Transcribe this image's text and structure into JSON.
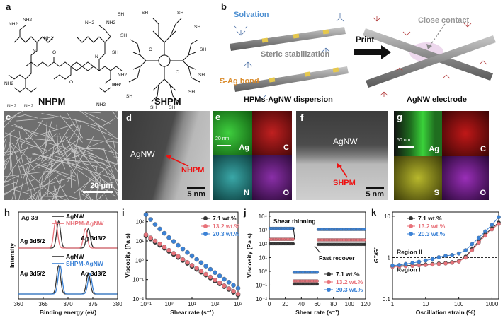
{
  "panels": {
    "a": {
      "label": "a",
      "nhpm": "NHPM",
      "shpm": "SHPM",
      "amine": "NH2",
      "thiol": "SH",
      "amide_o": "O",
      "amide_n": "N"
    },
    "b": {
      "label": "b",
      "solvation": "Solvation",
      "steric": "Steric stabilization",
      "sag": "S-Ag bond",
      "print": "Print",
      "close_contact": "Close contact",
      "left_caption": "HPMs-AgNW dispersion",
      "right_caption": "AgNW electrode"
    },
    "c": {
      "label": "c",
      "scale": "20 μm"
    },
    "d": {
      "label": "d",
      "agnw": "AgNW",
      "nhpm": "NHPM",
      "scale": "5 nm"
    },
    "e": {
      "label": "e",
      "scale": "20 nm",
      "ag": "Ag",
      "c": "C",
      "n": "N",
      "o": "O"
    },
    "f": {
      "label": "f",
      "agnw": "AgNW",
      "shpm": "SHPM",
      "scale": "5 nm"
    },
    "g": {
      "label": "g",
      "scale": "50 nm",
      "ag": "Ag",
      "c": "C",
      "s": "S",
      "o": "O"
    },
    "h": {
      "label": "h"
    },
    "i": {
      "label": "i"
    },
    "j": {
      "label": "j"
    },
    "k": {
      "label": "k"
    }
  },
  "colors": {
    "black": "#333333",
    "red": "#e8727a",
    "blue": "#3b82d6"
  },
  "chart_data": [
    {
      "id": "h",
      "type": "line",
      "xlabel": "Binding energy (eV)",
      "ylabel": "Intensity",
      "xlim": [
        360,
        380
      ],
      "xticks": [
        360,
        365,
        370,
        375,
        380
      ],
      "title_parts": [
        "Ag 3",
        "d"
      ],
      "annotations": {
        "top_left": "Ag 3d5/2",
        "top_right": "Ag 3d3/2",
        "bottom_left": "Ag 3d5/2",
        "bottom_right": "Ag 3d3/2"
      },
      "series": [
        {
          "name": "AgNW",
          "group": "top",
          "color": "#333333",
          "peaks": [
            368.1,
            374.1
          ]
        },
        {
          "name": "NHPM-AgNW",
          "group": "top",
          "color": "#e8727a",
          "peaks": [
            367.5,
            373.5
          ]
        },
        {
          "name": "AgNW",
          "group": "bottom",
          "color": "#333333",
          "peaks": [
            368.1,
            374.1
          ]
        },
        {
          "name": "SHPM-AgNW",
          "group": "bottom",
          "color": "#3b82d6",
          "peaks": [
            368.4,
            374.4
          ]
        }
      ]
    },
    {
      "id": "i",
      "type": "scatter",
      "xlabel": "Shear rate (s⁻¹)",
      "ylabel": "Viscosity (Pa s)",
      "xscale": "log",
      "yscale": "log",
      "xticks": [
        "10⁻¹",
        "10⁰",
        "10¹",
        "10²",
        "10³"
      ],
      "yticks": [
        "10⁻²",
        "10⁻¹",
        "10⁰",
        "10¹",
        "10²"
      ],
      "x": [
        0.1,
        0.16,
        0.25,
        0.4,
        0.63,
        1,
        1.6,
        2.5,
        4,
        6.3,
        10,
        16,
        25,
        40,
        63,
        100,
        160,
        250,
        400,
        630,
        1000
      ],
      "series": [
        {
          "name": "7.1 wt.%",
          "color": "#333333",
          "values": [
            18,
            12.5,
            8.6,
            6.0,
            4.2,
            2.9,
            2.0,
            1.4,
            0.98,
            0.69,
            0.48,
            0.34,
            0.24,
            0.17,
            0.12,
            0.084,
            0.06,
            0.043,
            0.031,
            0.022,
            0.016
          ]
        },
        {
          "name": "13.2 wt.%",
          "color": "#e8727a",
          "values": [
            21,
            14.5,
            10,
            7.0,
            4.8,
            3.3,
            2.3,
            1.6,
            1.1,
            0.78,
            0.55,
            0.39,
            0.27,
            0.19,
            0.135,
            0.095,
            0.068,
            0.048,
            0.034,
            0.025,
            0.018
          ]
        },
        {
          "name": "20.3 wt.%",
          "color": "#3b82d6",
          "values": [
            230,
            130,
            72,
            42,
            25,
            15,
            9.5,
            6.0,
            3.9,
            2.55,
            1.7,
            1.12,
            0.75,
            0.5,
            0.34,
            0.23,
            0.155,
            0.105,
            0.073,
            0.051,
            0.036
          ]
        }
      ]
    },
    {
      "id": "j",
      "type": "scatter",
      "xlabel": "Shear rate (s⁻¹)",
      "ylabel": "Viscosity (Pa s)",
      "xlim": [
        0,
        120
      ],
      "xticks": [
        0,
        20,
        40,
        60,
        80,
        100,
        120
      ],
      "yscale": "log",
      "yticks": [
        "10⁻²",
        "10⁻¹",
        "10⁰",
        "10¹",
        "10²",
        "10³",
        "10⁴"
      ],
      "annotations": {
        "shear_thinning": "Shear thinning",
        "fast_recover": "Fast recover"
      },
      "segments": [
        {
          "from": 0,
          "to": 30
        },
        {
          "from": 30,
          "to": 60
        },
        {
          "from": 60,
          "to": 120
        }
      ],
      "series": [
        {
          "name": "7.1 wt.%",
          "color": "#333333",
          "levels": [
            100,
            0.12,
            90
          ]
        },
        {
          "name": "13.2 wt.%",
          "color": "#e8727a",
          "levels": [
            210,
            0.2,
            190
          ]
        },
        {
          "name": "20.3 wt.%",
          "color": "#3b82d6",
          "levels": [
            1300,
            0.85,
            1100
          ]
        }
      ]
    },
    {
      "id": "k",
      "type": "scatter",
      "xlabel": "Oscillation strain (%)",
      "ylabel": "G''/G'",
      "xscale": "log",
      "yscale": "log",
      "xticks": [
        "1",
        "10",
        "100",
        "1000"
      ],
      "yticks": [
        "0.1",
        "1",
        "10"
      ],
      "reference_line": 1,
      "annotations": {
        "region2": "Region II",
        "region1": "Region I"
      },
      "x": [
        1,
        1.6,
        2.5,
        4,
        6.3,
        10,
        16,
        25,
        40,
        63,
        100,
        160,
        250,
        400,
        630,
        1000,
        1600
      ],
      "series": [
        {
          "name": "7.1 wt.%",
          "color": "#333333",
          "values": [
            0.62,
            0.63,
            0.64,
            0.65,
            0.67,
            0.68,
            0.7,
            0.72,
            0.74,
            0.77,
            0.82,
            1.05,
            1.6,
            2.5,
            3.7,
            5.1,
            7.0
          ]
        },
        {
          "name": "13.2 wt.%",
          "color": "#e8727a",
          "values": [
            0.6,
            0.61,
            0.62,
            0.63,
            0.65,
            0.66,
            0.68,
            0.7,
            0.72,
            0.75,
            0.8,
            1.0,
            1.5,
            2.3,
            3.4,
            4.8,
            6.5
          ]
        },
        {
          "name": "20.3 wt.%",
          "color": "#3b82d6",
          "values": [
            0.64,
            0.66,
            0.7,
            0.74,
            0.79,
            0.85,
            0.92,
            1.02,
            1.1,
            1.15,
            1.25,
            1.5,
            2.1,
            3.0,
            4.3,
            6.2,
            9.5
          ]
        }
      ]
    }
  ]
}
